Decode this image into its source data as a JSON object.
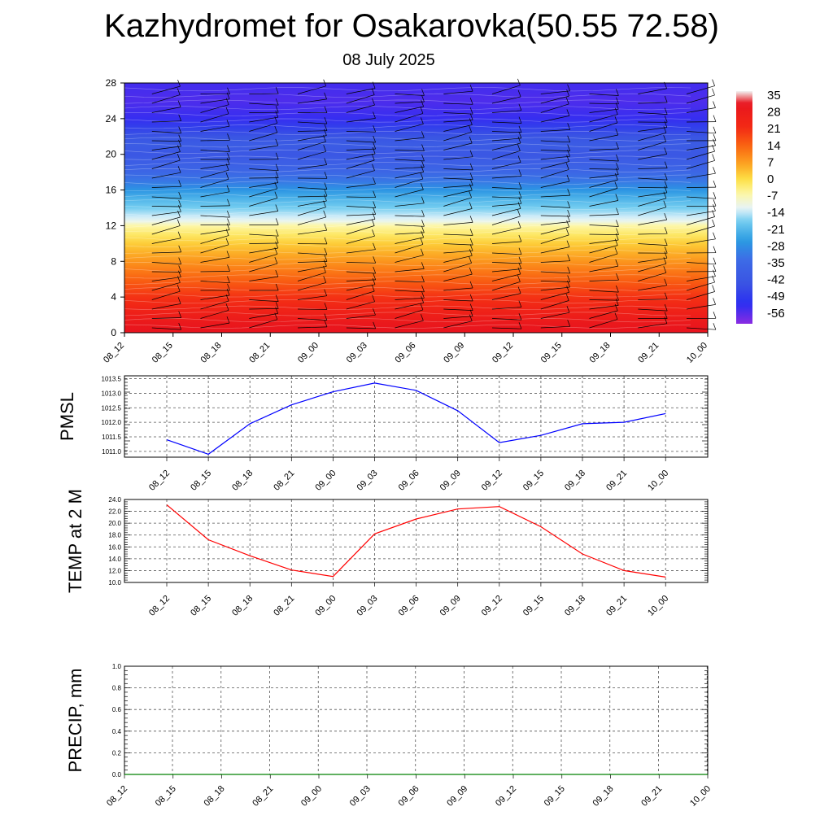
{
  "header": {
    "title": "Kazhydromet for Osakarovka(50.55 72.58)",
    "subtitle": "08 July 2025"
  },
  "chart_data": [
    {
      "type": "heatmap",
      "x_ticks": [
        "08_12",
        "08_15",
        "08_18",
        "08_21",
        "09_00",
        "09_03",
        "09_06",
        "09_09",
        "09_12",
        "09_15",
        "09_18",
        "09_21",
        "10_00"
      ],
      "y_ticks": [
        0,
        4,
        8,
        12,
        16,
        20,
        24,
        28
      ],
      "ylim": [
        0,
        28
      ],
      "colorbar": {
        "labels": [
          "35",
          "28",
          "21",
          "14",
          "7",
          "0",
          "-7",
          "-14",
          "-21",
          "-28",
          "-35",
          "-42",
          "-49",
          "-56"
        ],
        "stops": [
          {
            "value": 35,
            "color": "#f2f2f2"
          },
          {
            "value": 30,
            "color": "#e8141e"
          },
          {
            "value": 20,
            "color": "#f32a14"
          },
          {
            "value": 12,
            "color": "#fa6a12"
          },
          {
            "value": 5,
            "color": "#fca622"
          },
          {
            "value": -1,
            "color": "#fde045"
          },
          {
            "value": -7,
            "color": "#fdf7a8"
          },
          {
            "value": -13,
            "color": "#e6f4fa"
          },
          {
            "value": -18,
            "color": "#74cdf0"
          },
          {
            "value": -26,
            "color": "#2a9be2"
          },
          {
            "value": -34,
            "color": "#3d6be6"
          },
          {
            "value": -44,
            "color": "#3a52e3"
          },
          {
            "value": -52,
            "color": "#2a2ef2"
          },
          {
            "value": -60,
            "color": "#8a2be2"
          }
        ]
      },
      "profile": [
        {
          "h": 0,
          "t": 30
        },
        {
          "h": 1,
          "t": 28
        },
        {
          "h": 2,
          "t": 25
        },
        {
          "h": 3,
          "t": 22
        },
        {
          "h": 4,
          "t": 19
        },
        {
          "h": 5,
          "t": 16
        },
        {
          "h": 6,
          "t": 13
        },
        {
          "h": 7,
          "t": 10
        },
        {
          "h": 8,
          "t": 7
        },
        {
          "h": 9,
          "t": 4
        },
        {
          "h": 10,
          "t": 1
        },
        {
          "h": 11,
          "t": -3
        },
        {
          "h": 12,
          "t": -7
        },
        {
          "h": 12.5,
          "t": -12
        },
        {
          "h": 13,
          "t": -14
        },
        {
          "h": 14,
          "t": -18
        },
        {
          "h": 15,
          "t": -22
        },
        {
          "h": 16,
          "t": -27
        },
        {
          "h": 17,
          "t": -32
        },
        {
          "h": 18,
          "t": -36
        },
        {
          "h": 19,
          "t": -39
        },
        {
          "h": 20,
          "t": -42
        },
        {
          "h": 21,
          "t": -40
        },
        {
          "h": 22,
          "t": -43
        },
        {
          "h": 23,
          "t": -48
        },
        {
          "h": 24,
          "t": -53
        },
        {
          "h": 26,
          "t": -55
        },
        {
          "h": 28,
          "t": -54
        }
      ]
    },
    {
      "type": "line",
      "ylabel": "PMSL",
      "x": [
        "08_12",
        "08_15",
        "08_18",
        "08_21",
        "09_00",
        "09_03",
        "09_06",
        "09_09",
        "09_12",
        "09_15",
        "09_18",
        "09_21",
        "10_00"
      ],
      "series": [
        {
          "values": [
            1011.4,
            1010.9,
            1011.95,
            1012.6,
            1013.05,
            1013.35,
            1013.1,
            1012.4,
            1011.3,
            1011.55,
            1011.95,
            1012.0,
            1012.3
          ],
          "color": "#0000ff"
        }
      ],
      "y_ticks": [
        "1011.0",
        "1011.5",
        "1012.0",
        "1012.5",
        "1013.0",
        "1013.5"
      ],
      "ylim": [
        1010.8,
        1013.6
      ],
      "grid": true
    },
    {
      "type": "line",
      "ylabel": "TEMP at 2 M",
      "x": [
        "08_12",
        "08_15",
        "08_18",
        "08_21",
        "09_00",
        "09_03",
        "09_06",
        "09_09",
        "09_12",
        "09_15",
        "09_18",
        "09_21",
        "10_00"
      ],
      "series": [
        {
          "values": [
            23.1,
            17.2,
            14.5,
            12.1,
            11.0,
            18.2,
            20.7,
            22.4,
            22.8,
            19.4,
            14.8,
            12.0,
            10.9
          ],
          "color": "#ff0000"
        }
      ],
      "y_ticks": [
        "10.0",
        "12.0",
        "14.0",
        "16.0",
        "18.0",
        "20.0",
        "22.0",
        "24.0"
      ],
      "ylim": [
        10.0,
        24.0
      ],
      "grid": true
    },
    {
      "type": "line",
      "ylabel": "PRECIP, mm",
      "x": [
        "08_12",
        "08_15",
        "08_18",
        "08_21",
        "09_00",
        "09_03",
        "09_06",
        "09_09",
        "09_12",
        "09_15",
        "09_18",
        "09_21",
        "10_00"
      ],
      "series": [
        {
          "values": [
            0,
            0,
            0,
            0,
            0,
            0,
            0,
            0,
            0,
            0,
            0,
            0,
            0
          ],
          "color": "#008000"
        }
      ],
      "y_ticks": [
        "0.0",
        "0.2",
        "0.4",
        "0.6",
        "0.8",
        "1.0"
      ],
      "ylim": [
        0,
        1.0
      ],
      "grid": true
    }
  ]
}
